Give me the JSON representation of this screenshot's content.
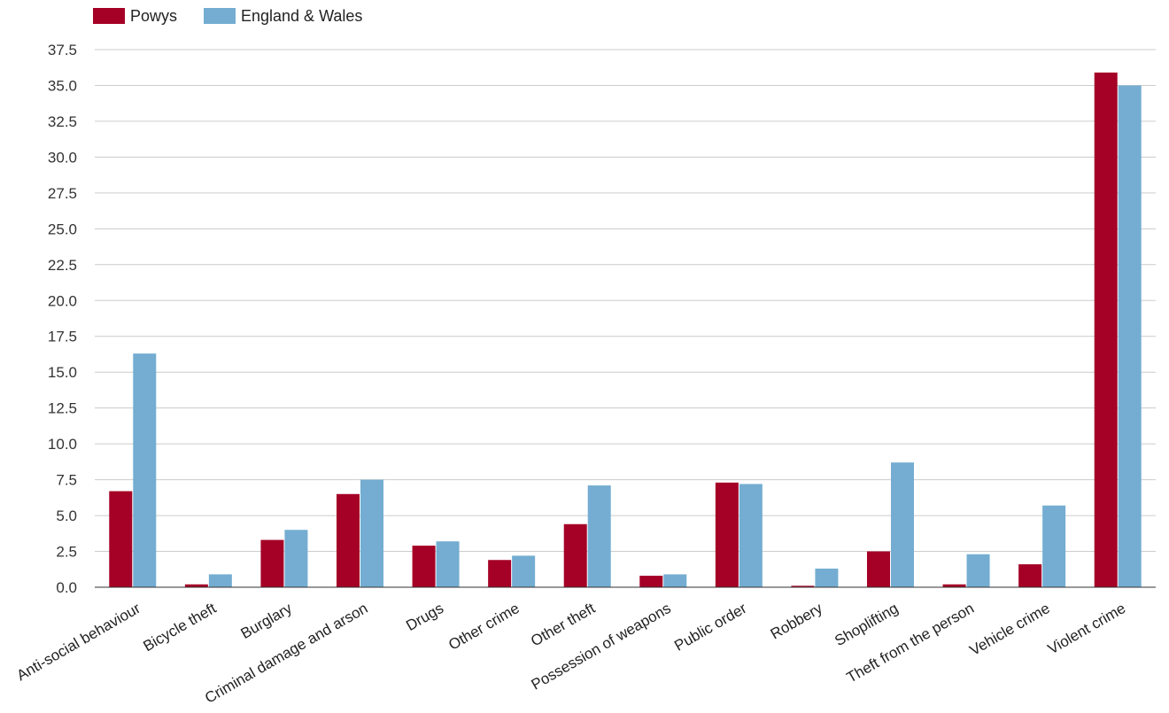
{
  "chart_data": {
    "type": "bar",
    "categories": [
      "Anti-social behaviour",
      "Bicycle theft",
      "Burglary",
      "Criminal damage and arson",
      "Drugs",
      "Other crime",
      "Other theft",
      "Possession of weapons",
      "Public order",
      "Robbery",
      "Shoplifting",
      "Theft from the person",
      "Vehicle crime",
      "Violent crime"
    ],
    "series": [
      {
        "name": "Powys",
        "color": "#a50026",
        "values": [
          6.7,
          0.2,
          3.3,
          6.5,
          2.9,
          1.9,
          4.4,
          0.8,
          7.3,
          0.1,
          2.5,
          0.2,
          1.6,
          35.9
        ]
      },
      {
        "name": "England & Wales",
        "color": "#74add1",
        "values": [
          16.3,
          0.9,
          4.0,
          7.5,
          3.2,
          2.2,
          7.1,
          0.9,
          7.2,
          1.3,
          8.7,
          2.3,
          5.7,
          35.0
        ]
      }
    ],
    "yticks": [
      "0.0",
      "2.5",
      "5.0",
      "7.5",
      "10.0",
      "12.5",
      "15.0",
      "17.5",
      "20.0",
      "22.5",
      "25.0",
      "27.5",
      "30.0",
      "32.5",
      "35.0",
      "37.5"
    ],
    "ylim": [
      0,
      37.5
    ],
    "grid": true,
    "legend_position": "top-left",
    "title": "",
    "xlabel": "",
    "ylabel": ""
  }
}
